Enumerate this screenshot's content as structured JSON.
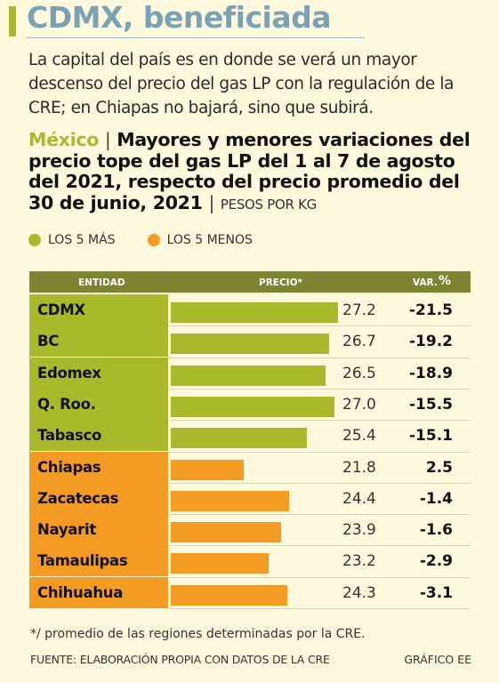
{
  "title": "CDMX, beneficiada",
  "subtitle": "La capital del país es en donde se verá un mayor descenso del precio del gas LP con la regulación de la CRE; en Chiapas no bajará, sino que subirá.",
  "heading": {
    "country": "México",
    "separator": "|",
    "text": "Mayores y menores variaciones del precio tope del gas LP del 1 al 7 de agosto del 2021, respecto del precio promedio del 30 de junio, 2021",
    "unit_separator": "|",
    "unit": "PESOS POR KG"
  },
  "legend": [
    {
      "label": "LOS 5 MÁS",
      "color": "#a9b92c"
    },
    {
      "label": "LOS 5 MENOS",
      "color": "#f39b22"
    }
  ],
  "columns": {
    "entity": "ENTIDAD",
    "price": "PRECIO*",
    "var": "VAR.",
    "var_unit": "%"
  },
  "colors": {
    "green": "#a9b92c",
    "orange": "#f39b22",
    "header": "#7d8431"
  },
  "chart_data": {
    "type": "bar",
    "categories": [
      "CDMX",
      "BC",
      "Edomex",
      "Q. Roo.",
      "Tabasco",
      "Chiapas",
      "Zacatecas",
      "Nayarit",
      "Tamaulipas",
      "Chihuahua"
    ],
    "values": [
      27.2,
      26.7,
      26.5,
      27.0,
      25.4,
      21.8,
      24.4,
      23.9,
      23.2,
      24.3
    ],
    "values_label": [
      "27.2",
      "26.7",
      "26.5",
      "27.0",
      "25.4",
      "21.8",
      "24.4",
      "23.9",
      "23.2",
      "24.3"
    ],
    "var": [
      "-21.5",
      "-19.2",
      "-18.9",
      "-15.5",
      "-15.1",
      "2.5",
      "-1.4",
      "-1.6",
      "-2.9",
      "-3.1"
    ],
    "group": [
      "mas",
      "mas",
      "mas",
      "mas",
      "mas",
      "menos",
      "menos",
      "menos",
      "menos",
      "menos"
    ]
  },
  "footnote": "*/ promedio de las regiones determinadas por la CRE.",
  "source": "FUENTE: ELABORACIÓN PROPIA CON DATOS DE LA CRE",
  "credit": "GRÁFICO EE"
}
